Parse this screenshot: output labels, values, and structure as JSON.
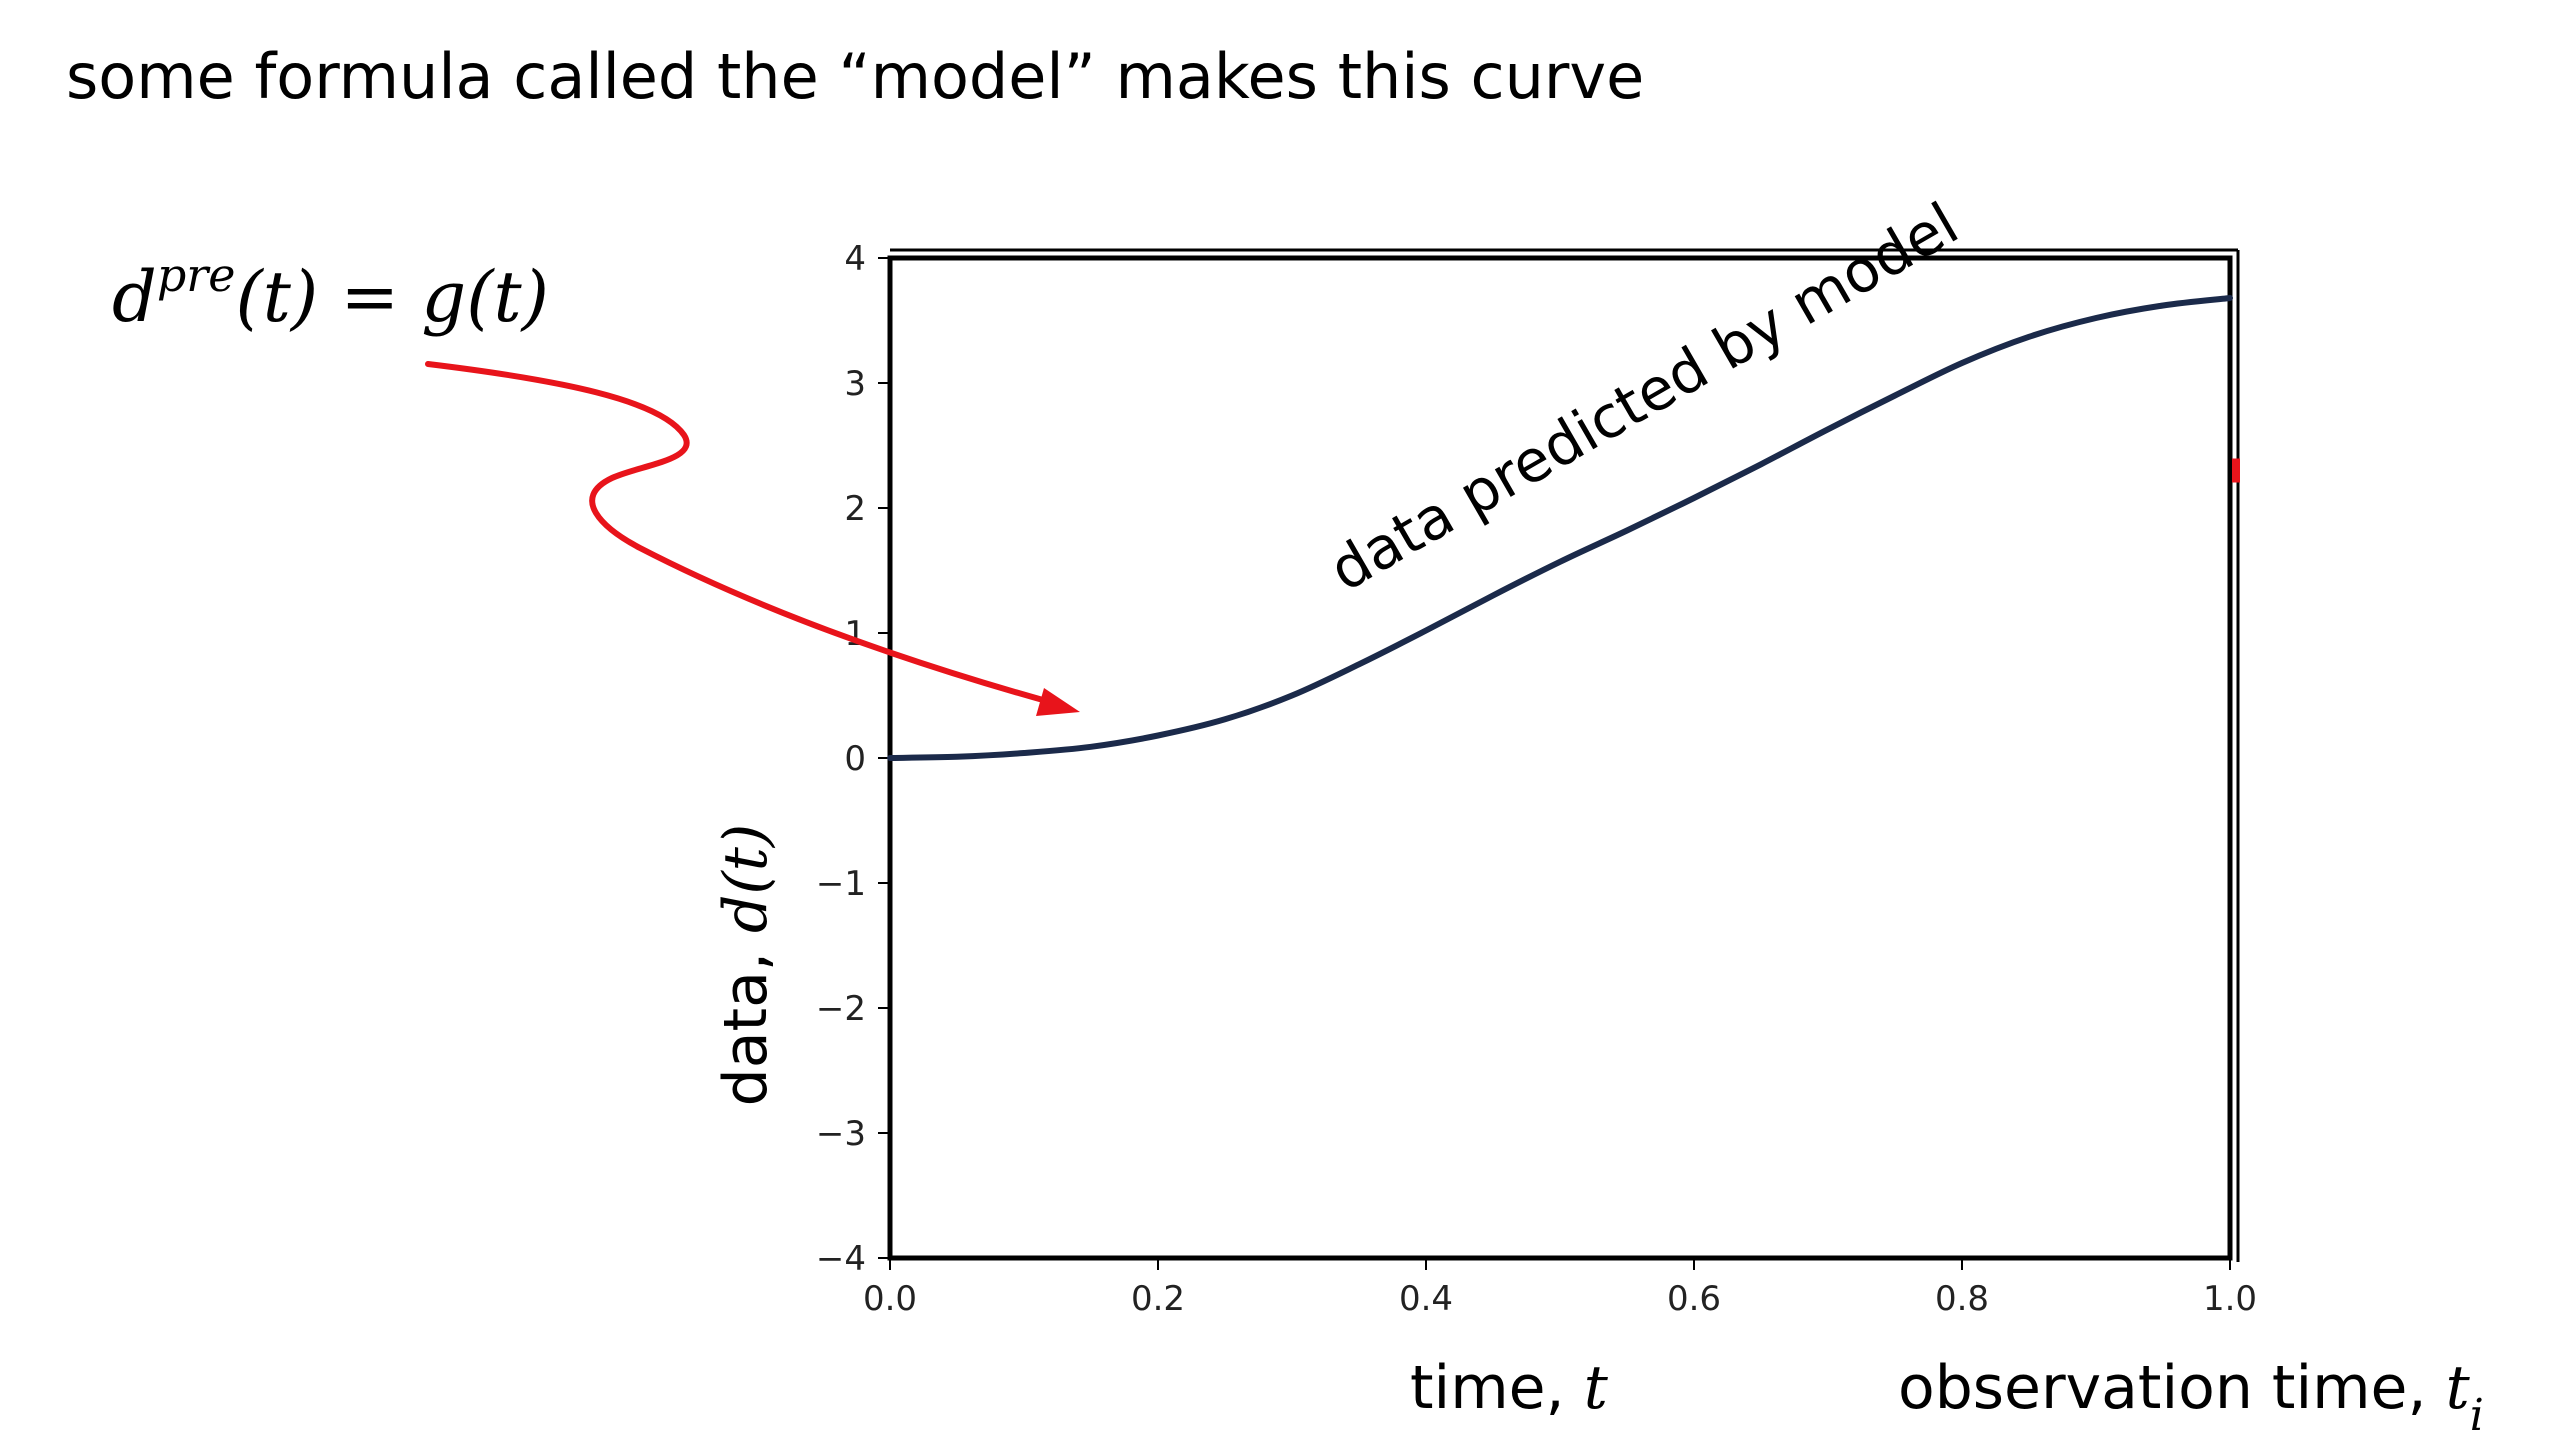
{
  "slide": {
    "title": "some formula called the “model” makes this curve",
    "formula": {
      "lhs_base": "d",
      "lhs_superscript": "pre",
      "rest": "(t) = g(t)"
    }
  },
  "chart_data": {
    "type": "line",
    "xlim": [
      0.0,
      1.0
    ],
    "ylim": [
      -4,
      4
    ],
    "x_ticks": [
      "0.0",
      "0.2",
      "0.4",
      "0.6",
      "0.8",
      "1.0"
    ],
    "y_ticks": [
      "4",
      "3",
      "2",
      "1",
      "0",
      "−1",
      "−2",
      "−3",
      "−4"
    ],
    "xlabel_prefix": "time, ",
    "xlabel_var": "t",
    "ylabel_prefix": "data, ",
    "ylabel_var": "d(t)",
    "extra_xlabel_prefix": "observation time, ",
    "extra_xlabel_var": "t",
    "extra_xlabel_sub": "i",
    "curve_annotation": "data  predicted  by model",
    "series": [
      {
        "x": [
          0.0,
          0.05,
          0.1,
          0.15,
          0.2,
          0.25,
          0.3,
          0.35,
          0.4,
          0.45,
          0.5,
          0.55,
          0.6,
          0.65,
          0.7,
          0.75,
          0.8,
          0.85,
          0.9,
          0.95,
          1.0
        ],
        "y": [
          0.0,
          0.01,
          0.04,
          0.09,
          0.18,
          0.31,
          0.5,
          0.75,
          1.02,
          1.3,
          1.57,
          1.82,
          2.08,
          2.35,
          2.63,
          2.9,
          3.16,
          3.37,
          3.52,
          3.62,
          3.68
        ]
      }
    ],
    "colors": {
      "line": "#1b2a4a",
      "arrow": "#e8141b",
      "frame": "#000000"
    }
  }
}
